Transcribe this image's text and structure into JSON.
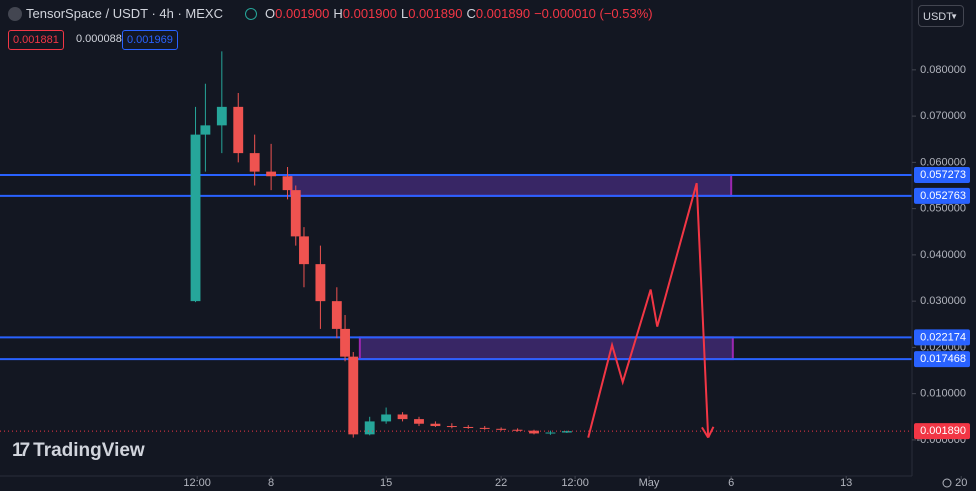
{
  "chart_data": {
    "type": "candlestick",
    "symbol": "TensorSpace / USDT · 4h · MEXC",
    "ohlc_header": [
      {
        "key": "O",
        "value": "0.001900"
      },
      {
        "key": "H",
        "value": "0.001900"
      },
      {
        "key": "L",
        "value": "0.001890"
      },
      {
        "key": "C",
        "value": "0.001890"
      }
    ],
    "change": "−0.000010 (−0.53%)",
    "bid": "0.001881",
    "spread": "0.000088",
    "ask": "0.001969",
    "currency": "USDT",
    "brand": "TradingView",
    "up_color": "#26a69a",
    "down_color": "#ef5350",
    "x": [
      3.4,
      4,
      5,
      6,
      7,
      8,
      9,
      9.5,
      10,
      11,
      12,
      12.5,
      13,
      14,
      15,
      16,
      17,
      18,
      19,
      20,
      21,
      22,
      23,
      24,
      25,
      26
    ],
    "open": [
      0.03,
      0.066,
      0.068,
      0.072,
      0.062,
      0.058,
      0.057,
      0.054,
      0.044,
      0.038,
      0.03,
      0.024,
      0.018,
      0.0012,
      0.004,
      0.0055,
      0.0045,
      0.0035,
      0.003,
      0.0028,
      0.0026,
      0.0024,
      0.0022,
      0.002,
      0.0014,
      0.0016
    ],
    "high": [
      0.072,
      0.077,
      0.084,
      0.075,
      0.066,
      0.064,
      0.059,
      0.055,
      0.046,
      0.042,
      0.033,
      0.027,
      0.019,
      0.005,
      0.007,
      0.006,
      0.005,
      0.004,
      0.0036,
      0.0032,
      0.003,
      0.0027,
      0.0025,
      0.0022,
      0.002,
      0.002
    ],
    "low": [
      0.0298,
      0.058,
      0.062,
      0.06,
      0.055,
      0.054,
      0.052,
      0.042,
      0.033,
      0.024,
      0.022,
      0.017,
      0.0005,
      0.001,
      0.0035,
      0.004,
      0.003,
      0.0028,
      0.0025,
      0.0024,
      0.0022,
      0.002,
      0.0018,
      0.0012,
      0.0011,
      0.0015
    ],
    "close": [
      0.066,
      0.068,
      0.072,
      0.062,
      0.058,
      0.057,
      0.054,
      0.044,
      0.038,
      0.03,
      0.024,
      0.018,
      0.0012,
      0.004,
      0.0055,
      0.0045,
      0.0035,
      0.003,
      0.0028,
      0.0026,
      0.0024,
      0.0022,
      0.002,
      0.0014,
      0.0016,
      0.0019
    ],
    "xlim": [
      -8.5,
      50.9
    ],
    "ylim": [
      -0.0078,
      0.0951
    ],
    "xticks": [
      {
        "value": 3.5,
        "label": "12:00"
      },
      8,
      15,
      22,
      {
        "value": 26.5,
        "label": "12:00"
      },
      {
        "value": 31,
        "label": "May"
      },
      {
        "value": 36,
        "label": "6"
      },
      {
        "value": 43,
        "label": "13"
      },
      {
        "value": 50,
        "label": "20"
      }
    ],
    "yticks": [
      {
        "value": 0,
        "label": "-0.000000"
      },
      {
        "value": 0.01,
        "label": "0.010000"
      },
      {
        "value": 0.02,
        "label": "0.020000"
      },
      {
        "value": 0.03,
        "label": "0.030000"
      },
      {
        "value": 0.04,
        "label": "0.040000"
      },
      {
        "value": 0.05,
        "label": "0.050000"
      },
      {
        "value": 0.06,
        "label": "0.060000"
      },
      {
        "value": 0.07,
        "label": "0.070000"
      },
      {
        "value": 0.08,
        "label": "0.080000"
      }
    ],
    "levels": [
      0.057273,
      0.052763,
      0.022174,
      0.017468
    ],
    "level_color": "#2962ff",
    "zones": [
      {
        "x": [
          9.2,
          36
        ],
        "y": [
          0.052763,
          0.057273
        ]
      },
      {
        "x": [
          13.4,
          36.1
        ],
        "y": [
          0.017468,
          0.022174
        ]
      }
    ],
    "projection": {
      "color": "#f23645",
      "x": [
        27.3,
        28.75,
        29.4,
        31.1,
        31.5,
        33.9,
        34.6
      ],
      "y": [
        0.0005,
        0.0205,
        0.0125,
        0.0325,
        0.0245,
        0.0555,
        0.0005
      ]
    },
    "current_price": {
      "value": 0.00189,
      "label": "0.001890"
    },
    "grid": false
  }
}
